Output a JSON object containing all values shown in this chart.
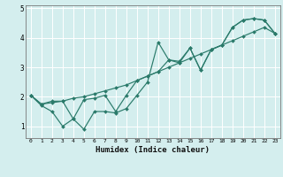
{
  "xlabel": "Humidex (Indice chaleur)",
  "bg_color": "#d4eeee",
  "grid_color": "#ffffff",
  "line_color": "#2a7a6a",
  "x_values": [
    0,
    1,
    2,
    3,
    4,
    5,
    6,
    7,
    8,
    9,
    10,
    11,
    12,
    13,
    14,
    15,
    16,
    17,
    18,
    19,
    20,
    21,
    22,
    23
  ],
  "line_smooth": [
    2.05,
    1.75,
    1.85,
    1.85,
    1.95,
    2.0,
    2.1,
    2.2,
    2.3,
    2.4,
    2.55,
    2.7,
    2.85,
    3.0,
    3.15,
    3.3,
    3.45,
    3.6,
    3.75,
    3.9,
    4.05,
    4.2,
    4.35,
    4.15
  ],
  "line_jagged": [
    2.05,
    1.7,
    1.5,
    1.0,
    1.25,
    0.9,
    1.5,
    1.5,
    1.45,
    1.6,
    2.05,
    2.5,
    3.85,
    3.25,
    3.2,
    3.65,
    2.9,
    3.6,
    3.75,
    4.35,
    4.6,
    4.65,
    4.6,
    4.15
  ],
  "line_mid": [
    2.05,
    1.75,
    1.8,
    1.85,
    1.25,
    1.9,
    1.95,
    2.05,
    1.5,
    2.05,
    2.55,
    2.7,
    2.85,
    3.25,
    3.15,
    3.65,
    2.9,
    3.6,
    3.75,
    4.35,
    4.6,
    4.65,
    4.6,
    4.15
  ],
  "ylim": [
    0.6,
    5.1
  ],
  "xlim": [
    -0.5,
    23.5
  ],
  "yticks": [
    1,
    2,
    3,
    4,
    5
  ],
  "xticks": [
    0,
    1,
    2,
    3,
    4,
    5,
    6,
    7,
    8,
    9,
    10,
    11,
    12,
    13,
    14,
    15,
    16,
    17,
    18,
    19,
    20,
    21,
    22,
    23
  ],
  "figsize": [
    3.2,
    2.0
  ],
  "dpi": 100
}
